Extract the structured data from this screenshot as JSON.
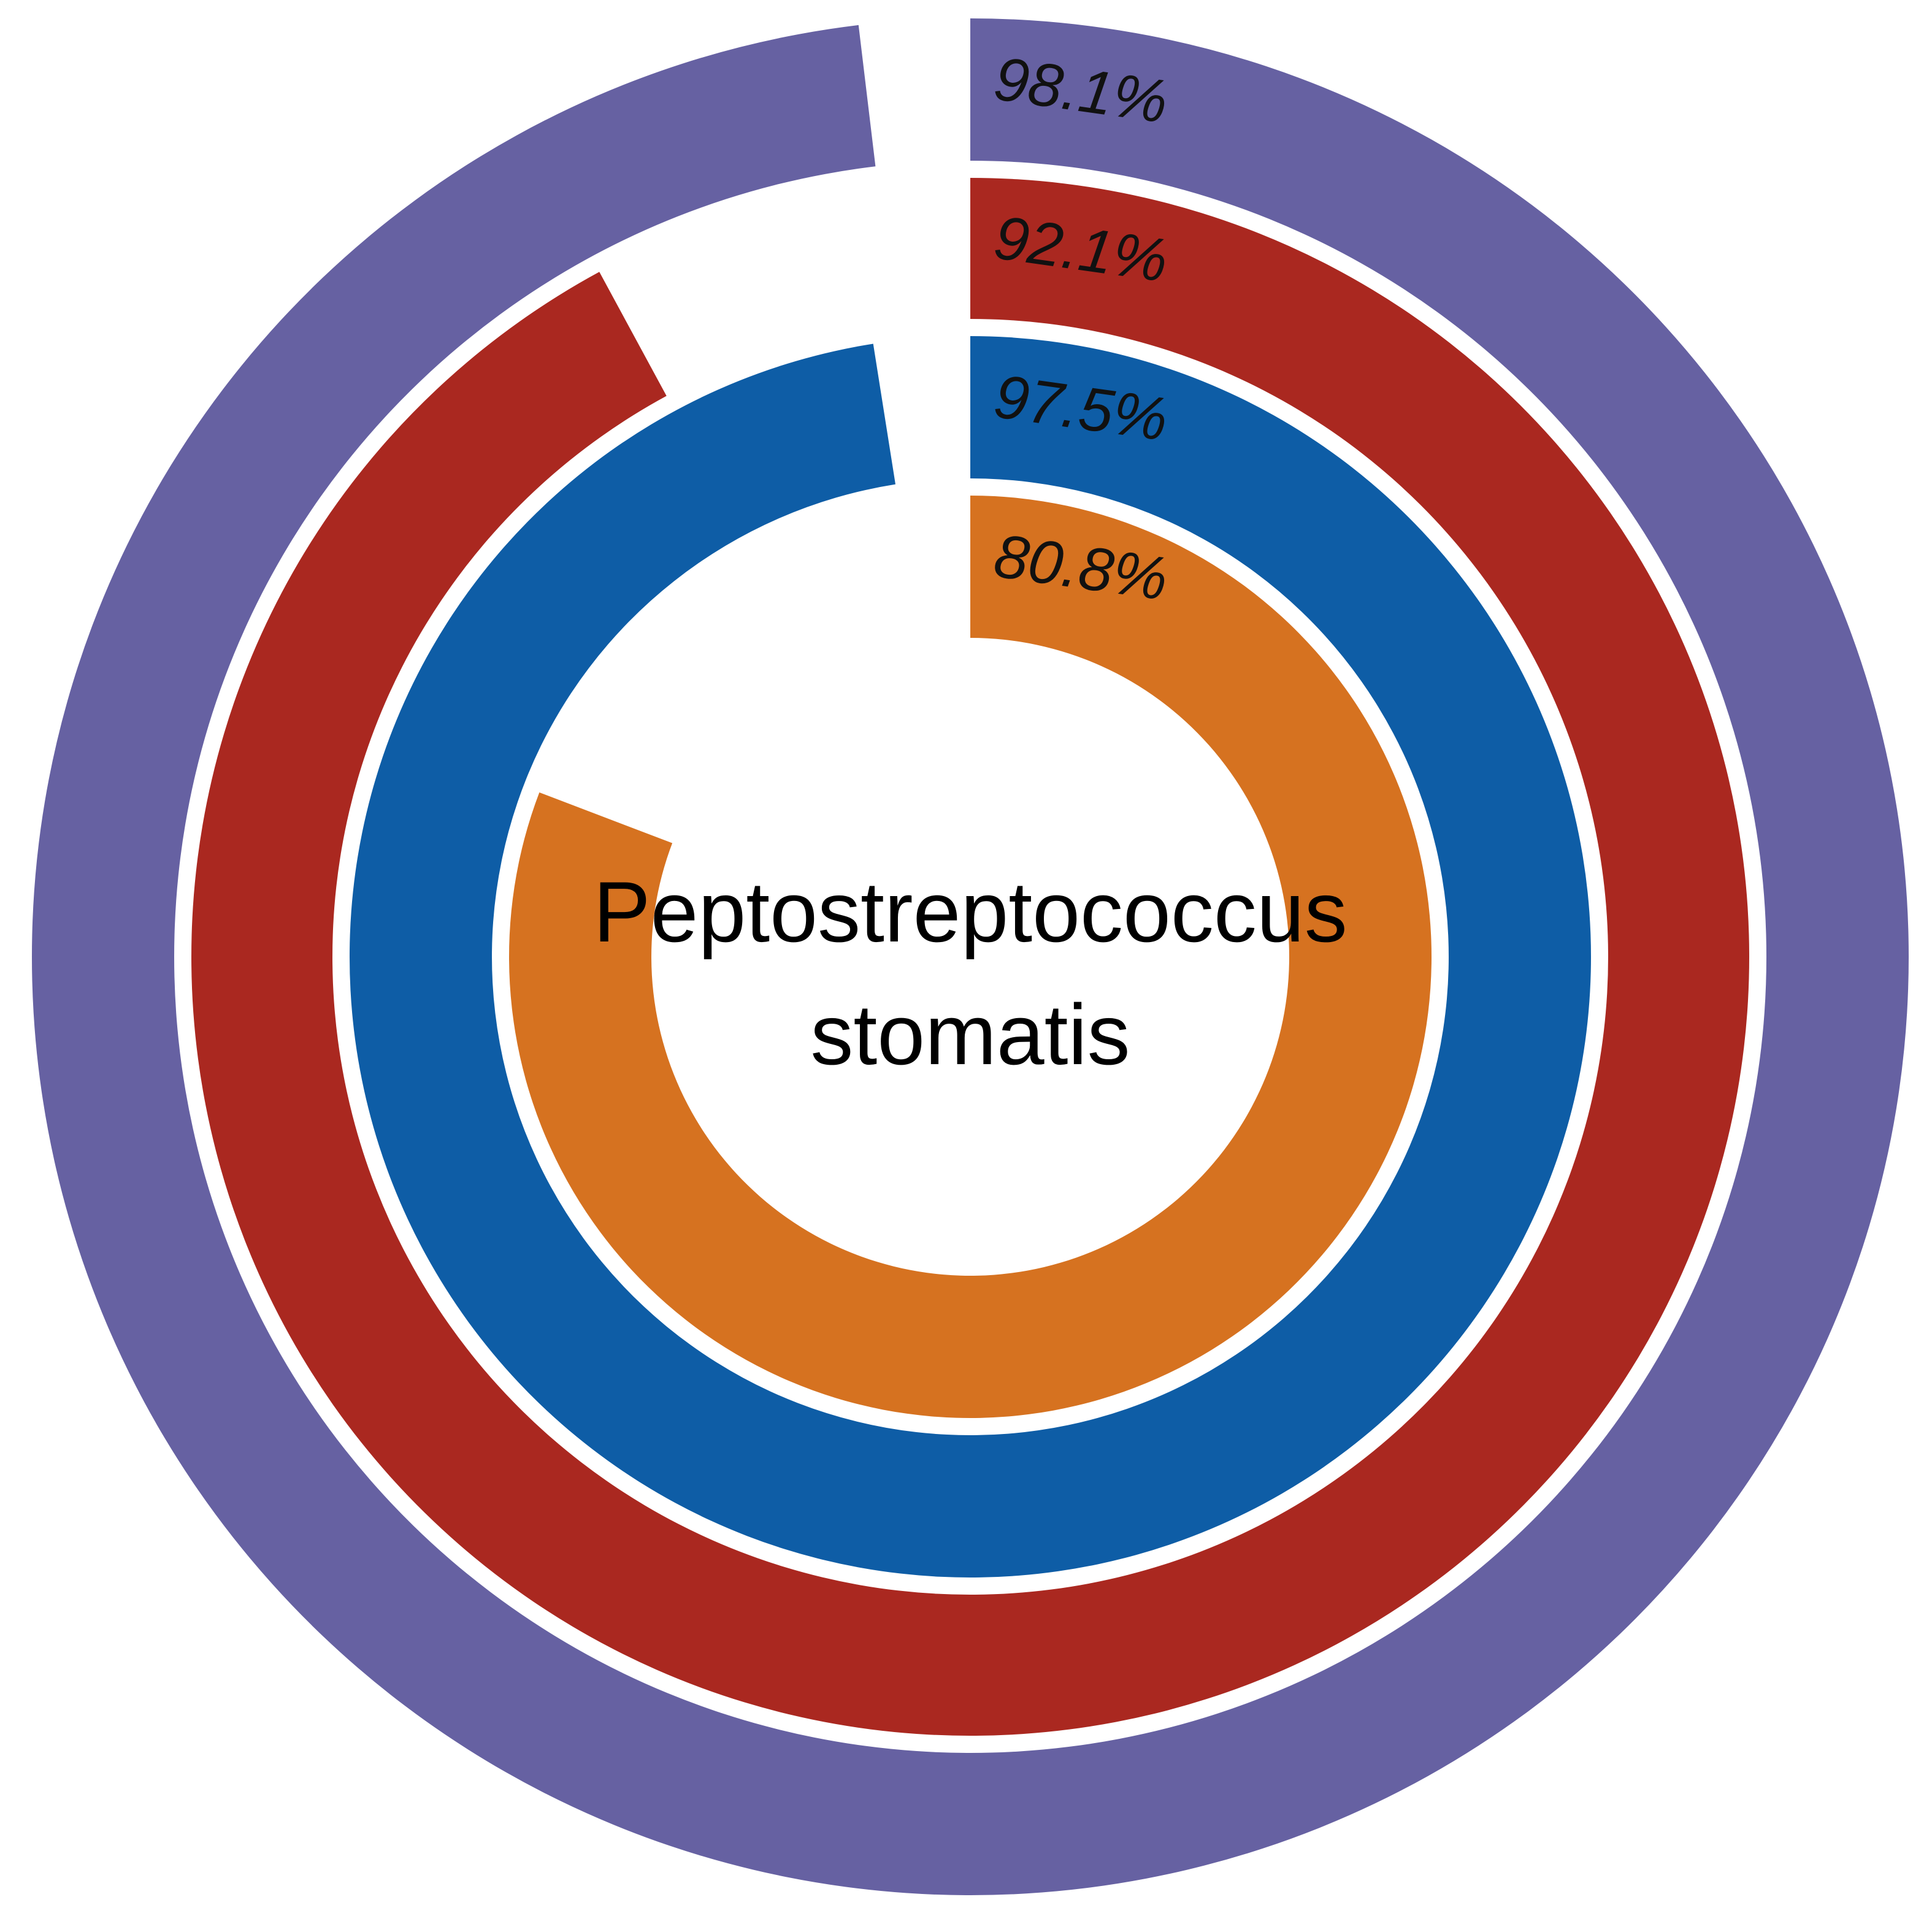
{
  "chart_data": {
    "type": "radial-bar",
    "center_label": {
      "line1": "Peptostreptococcus",
      "line2": "stomatis"
    },
    "rings": [
      {
        "value": 98.1,
        "label": "98.1%",
        "color": "#6661A2"
      },
      {
        "value": 92.1,
        "label": "92.1%",
        "color": "#AA2820"
      },
      {
        "value": 97.5,
        "label": "97.5%",
        "color": "#0E5DA6"
      },
      {
        "value": 80.8,
        "label": "80.8%",
        "color": "#D67220"
      }
    ]
  }
}
